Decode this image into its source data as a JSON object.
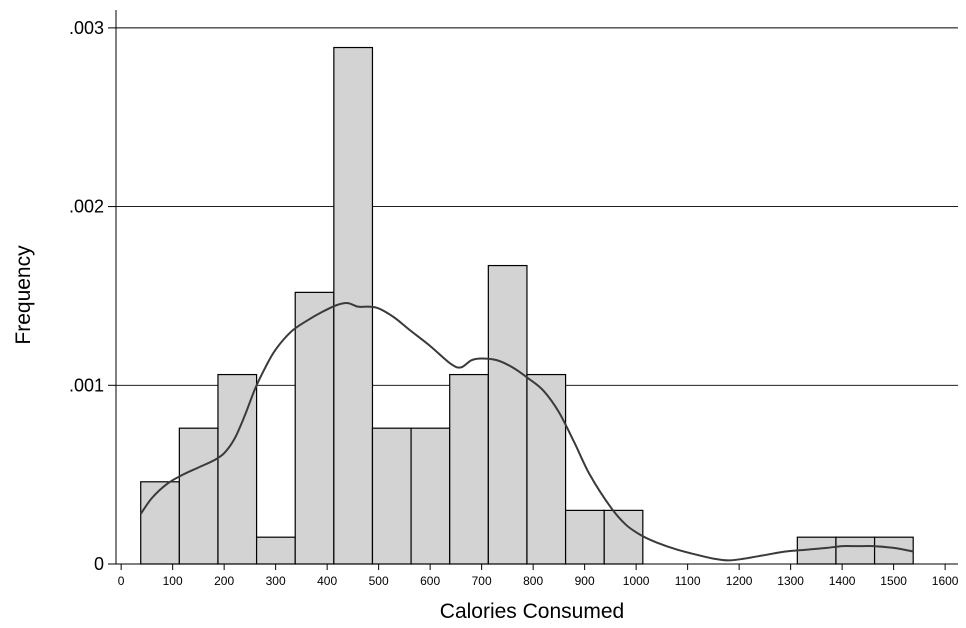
{
  "chart_data": {
    "type": "bar",
    "title": "",
    "xlabel": "Calories Consumed",
    "ylabel": "Frequency",
    "xlim": [
      -10,
      1625
    ],
    "ylim": [
      0,
      0.0031
    ],
    "grid": true,
    "legend": "none",
    "bar_fill": "#d3d3d3",
    "bar_stroke": "#000000",
    "density_color": "#3a3a3a",
    "y_ticks": [
      0,
      0.001,
      0.002,
      0.003
    ],
    "y_tick_labels": [
      "0",
      ".001",
      ".002",
      ".003"
    ],
    "x_ticks": [
      0,
      100,
      200,
      300,
      400,
      500,
      600,
      700,
      800,
      900,
      1000,
      1100,
      1200,
      1300,
      1400,
      1500,
      1600
    ],
    "x_tick_labels": [
      "0",
      "100",
      "200",
      "300",
      "400",
      "500",
      "600",
      "700",
      "800",
      "900",
      "1000",
      "1100",
      "1200",
      "1300",
      "1400",
      "1500",
      "1600"
    ],
    "bins": [
      {
        "x0": 38,
        "x1": 113,
        "value": 0.00046
      },
      {
        "x0": 113,
        "x1": 188,
        "value": 0.00076
      },
      {
        "x0": 188,
        "x1": 263,
        "value": 0.00106
      },
      {
        "x0": 263,
        "x1": 338,
        "value": 0.00015
      },
      {
        "x0": 338,
        "x1": 413,
        "value": 0.00152
      },
      {
        "x0": 413,
        "x1": 488,
        "value": 0.00289
      },
      {
        "x0": 488,
        "x1": 563,
        "value": 0.00076
      },
      {
        "x0": 563,
        "x1": 638,
        "value": 0.00076
      },
      {
        "x0": 638,
        "x1": 713,
        "value": 0.00106
      },
      {
        "x0": 713,
        "x1": 788,
        "value": 0.00167
      },
      {
        "x0": 788,
        "x1": 863,
        "value": 0.00106
      },
      {
        "x0": 863,
        "x1": 938,
        "value": 0.0003
      },
      {
        "x0": 938,
        "x1": 1013,
        "value": 0.0003
      },
      {
        "x0": 1013,
        "x1": 1088,
        "value": 0
      },
      {
        "x0": 1088,
        "x1": 1163,
        "value": 0
      },
      {
        "x0": 1163,
        "x1": 1238,
        "value": 0
      },
      {
        "x0": 1238,
        "x1": 1313,
        "value": 0
      },
      {
        "x0": 1313,
        "x1": 1388,
        "value": 0.00015
      },
      {
        "x0": 1388,
        "x1": 1463,
        "value": 0.00015
      },
      {
        "x0": 1463,
        "x1": 1538,
        "value": 0.00015
      }
    ],
    "density": {
      "x": [
        38,
        60,
        90,
        120,
        150,
        180,
        200,
        220,
        240,
        260,
        280,
        300,
        330,
        360,
        390,
        420,
        440,
        460,
        480,
        500,
        530,
        560,
        600,
        640,
        660,
        680,
        700,
        730,
        760,
        790,
        820,
        850,
        880,
        910,
        950,
        980,
        1010,
        1040,
        1080,
        1120,
        1150,
        1180,
        1210,
        1250,
        1290,
        1330,
        1370,
        1400,
        1430,
        1460,
        1500,
        1538
      ],
      "y": [
        0.00028,
        0.00037,
        0.00045,
        0.0005,
        0.00054,
        0.00058,
        0.00062,
        0.0007,
        0.00083,
        0.00098,
        0.0011,
        0.0012,
        0.0013,
        0.00136,
        0.00141,
        0.00145,
        0.00146,
        0.00144,
        0.00144,
        0.00143,
        0.00138,
        0.00131,
        0.00122,
        0.00112,
        0.0011,
        0.00114,
        0.00115,
        0.00114,
        0.0011,
        0.00104,
        0.00097,
        0.00085,
        0.00068,
        0.0005,
        0.00032,
        0.00022,
        0.00016,
        0.00012,
        8e-05,
        5e-05,
        3e-05,
        2e-05,
        3e-05,
        5e-05,
        7e-05,
        8e-05,
        9e-05,
        0.0001,
        0.0001,
        0.0001,
        9e-05,
        7e-05
      ]
    }
  }
}
